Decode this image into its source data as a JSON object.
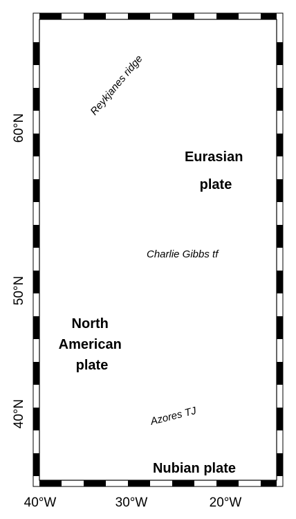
{
  "map": {
    "plates": {
      "eurasian": [
        "Eurasian",
        "plate"
      ],
      "north_american": [
        "North",
        "American",
        "plate"
      ],
      "nubian": "Nubian plate"
    },
    "features": {
      "reykjanes": "Reykjanes ridge",
      "charlie_gibbs": "Charlie Gibbs tf",
      "azores": "Azores TJ"
    },
    "lat_labels": [
      "60°N",
      "50°N",
      "40°N"
    ],
    "lon_labels": [
      "40°W",
      "30°W",
      "20°W"
    ],
    "colors": {
      "profiles": "#e8121c",
      "azores_profiles": "#7f83e6",
      "boundary": "#000000",
      "land_fill": "#e9e9e9"
    }
  }
}
